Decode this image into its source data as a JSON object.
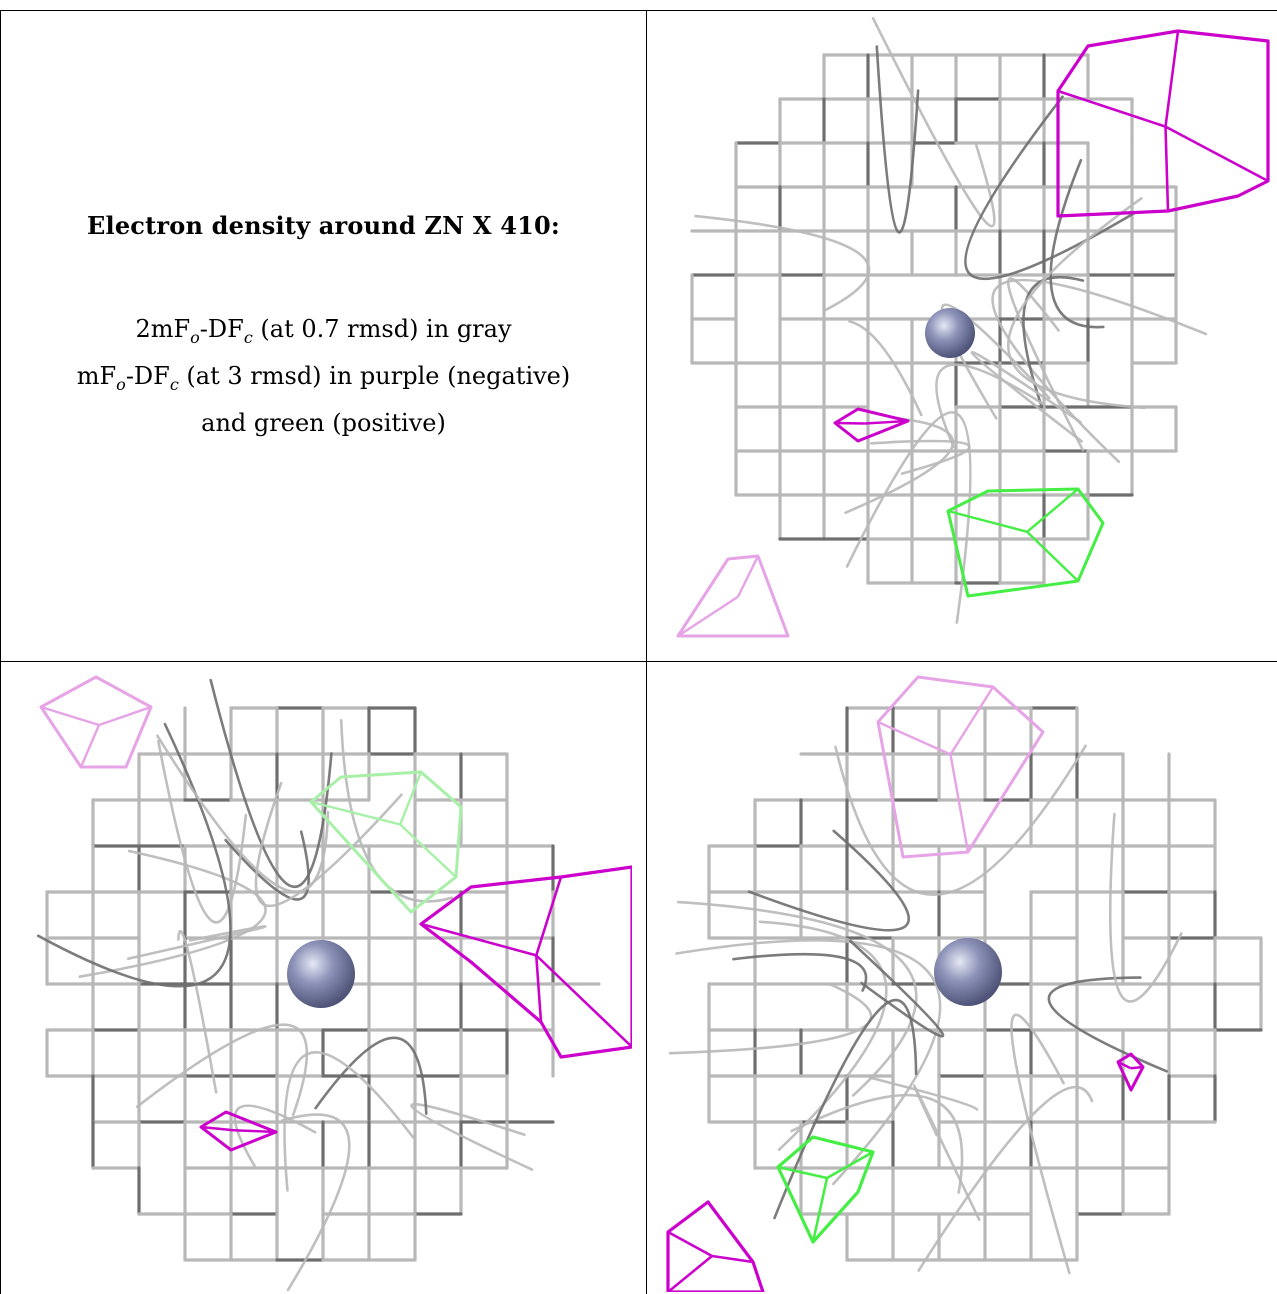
{
  "caption": {
    "title": "Electron density around ZN X 410:",
    "line1_main": "2mF",
    "line1_sub1": "o",
    "line1_mid": "-DF",
    "line1_sub2": "c",
    "line1_rest": " (at 0.7 rmsd) in gray",
    "line2_main": "mF",
    "line2_sub1": "o",
    "line2_mid": "-DF",
    "line2_sub2": "c",
    "line2_rest": " (at 3 rmsd) in purple (negative)",
    "line3": "and green (positive)"
  },
  "colors": {
    "gray_mesh": "#b8b8b8",
    "dark_mesh": "#6e6e6e",
    "negative": "#cc00cc",
    "negative_faint": "#e6a3e6",
    "positive": "#44ee44",
    "positive_faint": "#a8f0a8",
    "zinc_sphere": "#8c92b8"
  },
  "panels": [
    {
      "name": "view-1",
      "atom": "ZN"
    },
    {
      "name": "view-2",
      "atom": "ZN"
    },
    {
      "name": "view-3",
      "atom": "ZN"
    }
  ]
}
